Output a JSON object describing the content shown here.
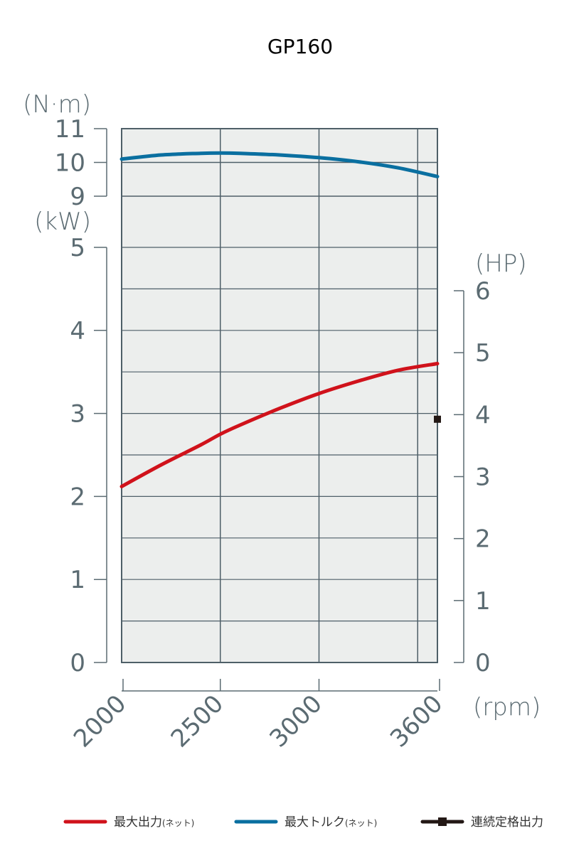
{
  "chart_data": {
    "type": "line",
    "title": "GP160",
    "x_unit": "(rpm)",
    "x_ticks": [
      2000,
      2500,
      3000,
      3600
    ],
    "xlim": [
      2000,
      3600
    ],
    "torque_axis": {
      "unit": "(N·m)",
      "ticks": [
        9,
        10,
        11
      ],
      "range": [
        9,
        11
      ]
    },
    "power_axis": {
      "unit": "(kW)",
      "ticks": [
        0,
        1,
        2,
        3,
        4,
        5
      ],
      "range": [
        0,
        5
      ]
    },
    "hp_axis": {
      "unit": "(HP)",
      "ticks": [
        0,
        1,
        2,
        3,
        4,
        5,
        6
      ],
      "range": [
        0,
        6
      ]
    },
    "series": [
      {
        "name": "最大トルク",
        "name_suffix": "(ネット)",
        "axis": "torque",
        "color": "#0a6fa0",
        "x": [
          2000,
          2200,
          2400,
          2500,
          2600,
          2800,
          3000,
          3200,
          3400,
          3600
        ],
        "y": [
          10.1,
          10.22,
          10.27,
          10.28,
          10.27,
          10.22,
          10.14,
          10.02,
          9.84,
          9.58
        ]
      },
      {
        "name": "最大出力",
        "name_suffix": "(ネット)",
        "axis": "power",
        "color": "#d0121b",
        "x": [
          2000,
          2200,
          2400,
          2500,
          2600,
          2800,
          3000,
          3200,
          3400,
          3600
        ],
        "y": [
          2.12,
          2.38,
          2.62,
          2.75,
          2.86,
          3.06,
          3.24,
          3.39,
          3.52,
          3.6
        ]
      },
      {
        "name": "連続定格出力",
        "axis": "power",
        "color": "#231815",
        "x": [
          3600
        ],
        "y": [
          2.93
        ]
      }
    ],
    "grid": true,
    "legend_position": "bottom"
  }
}
